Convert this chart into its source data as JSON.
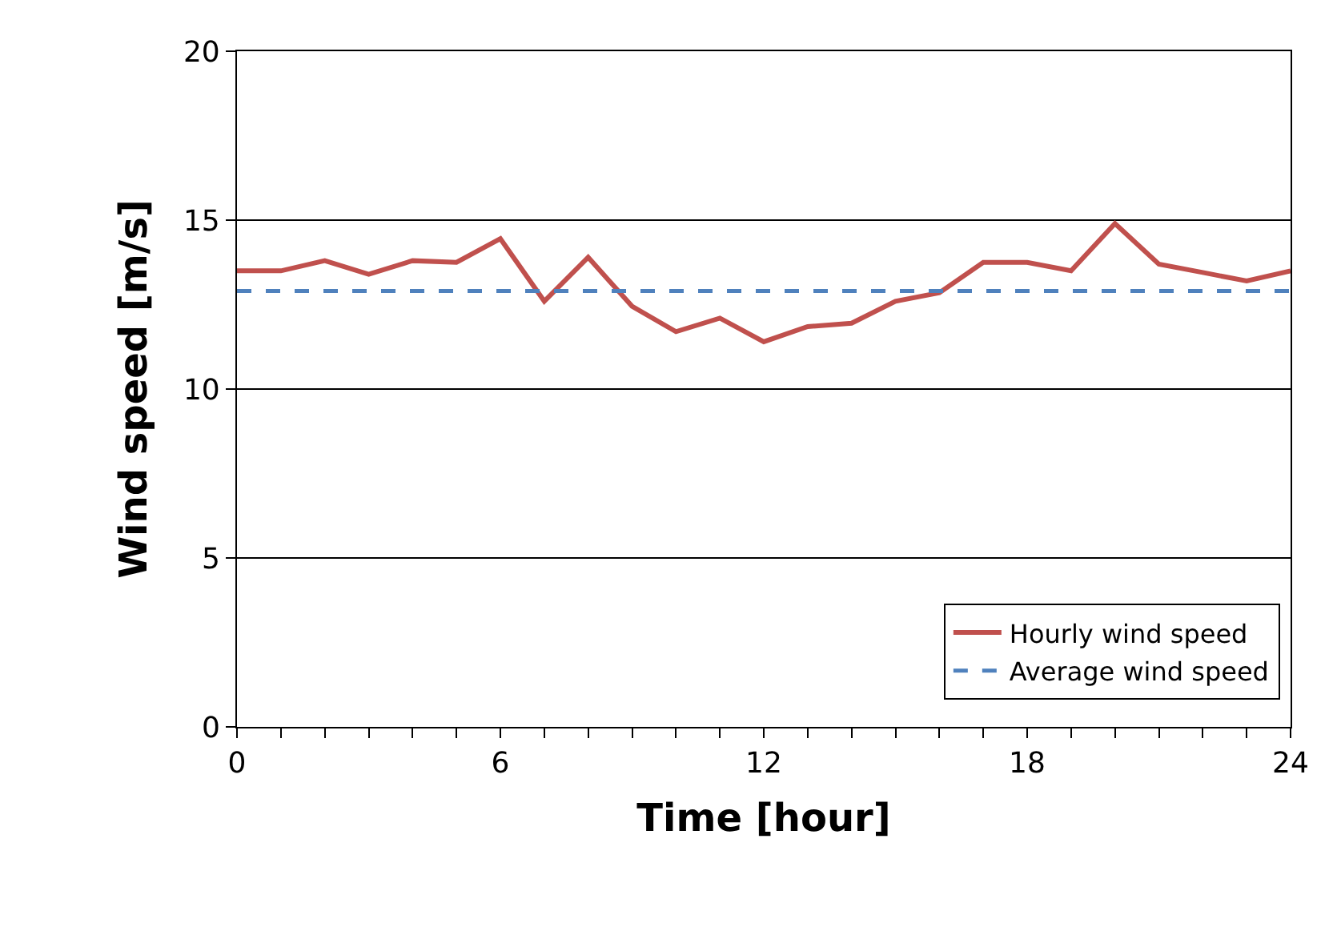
{
  "chart_data": {
    "type": "line",
    "xlabel": "Time [hour]",
    "ylabel": "Wind speed [m/s]",
    "x": [
      0,
      1,
      2,
      3,
      4,
      5,
      6,
      7,
      8,
      9,
      10,
      11,
      12,
      13,
      14,
      15,
      16,
      17,
      18,
      19,
      20,
      21,
      22,
      23,
      24
    ],
    "series": [
      {
        "name": "Hourly wind speed",
        "color": "#c0504d",
        "values": [
          13.5,
          13.5,
          13.8,
          13.4,
          13.8,
          13.75,
          14.45,
          12.6,
          13.9,
          12.45,
          11.7,
          12.1,
          11.4,
          11.85,
          11.95,
          12.6,
          12.85,
          13.75,
          13.75,
          13.5,
          14.9,
          13.7,
          13.45,
          13.2,
          13.5
        ]
      },
      {
        "name": "Average wind speed",
        "color": "#4f81bd",
        "x": [
          0,
          24
        ],
        "values": [
          12.9,
          12.9
        ],
        "line_style": "dashed"
      }
    ],
    "xlim": [
      0,
      24
    ],
    "xticks": [
      0,
      {
        "value": 1,
        "label": null
      },
      {
        "value": 2,
        "label": null
      },
      {
        "value": 3,
        "label": null
      },
      {
        "value": 4,
        "label": null
      },
      {
        "value": 5,
        "label": null
      },
      6,
      {
        "value": 7,
        "label": null
      },
      {
        "value": 8,
        "label": null
      },
      {
        "value": 9,
        "label": null
      },
      {
        "value": 10,
        "label": null
      },
      {
        "value": 11,
        "label": null
      },
      12,
      {
        "value": 13,
        "label": null
      },
      {
        "value": 14,
        "label": null
      },
      {
        "value": 15,
        "label": null
      },
      {
        "value": 16,
        "label": null
      },
      {
        "value": 17,
        "label": null
      },
      18,
      {
        "value": 19,
        "label": null
      },
      {
        "value": 20,
        "label": null
      },
      {
        "value": 21,
        "label": null
      },
      {
        "value": 22,
        "label": null
      },
      {
        "value": 23,
        "label": null
      },
      24
    ],
    "ylim": [
      0,
      20
    ],
    "yticks": [
      0,
      5,
      10,
      15,
      20
    ],
    "grid": "y",
    "legend": "bottom right",
    "marker": "none",
    "line_style": "solid"
  }
}
